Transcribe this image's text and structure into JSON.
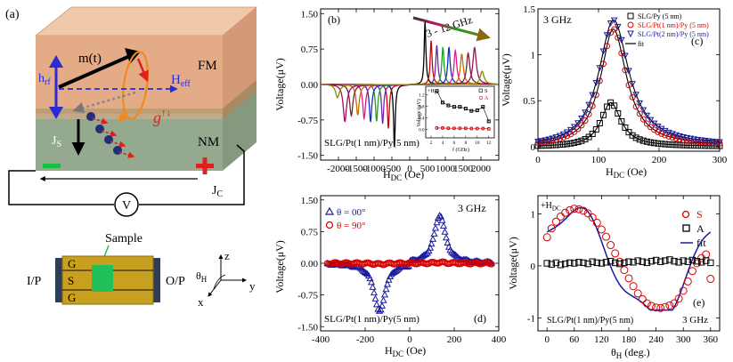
{
  "figure": {
    "panel_labels": {
      "a": "(a)",
      "b": "(b)",
      "c": "(c)",
      "d": "(d)",
      "e": "(e)"
    },
    "schematic": {
      "fm_label": "FM",
      "nm_label": "NM",
      "m_label": "m(t)",
      "hrf_main": "h",
      "hrf_sub": "rf",
      "heff_main": "H",
      "heff_sub": "eff",
      "g_label": "g",
      "g_sup": "↑↓",
      "js_main": "J",
      "js_sub": "S",
      "jc_main": "J",
      "jc_sub": "C",
      "voltmeter": "V",
      "cpw_labels": [
        "G",
        "S",
        "G"
      ],
      "sample_label": "Sample",
      "input_port": "I/P",
      "output_port": "O/P",
      "axes": {
        "z": "z",
        "y": "y",
        "x": "x",
        "theta_main": "θ",
        "theta_sub": "H"
      }
    },
    "colors": {
      "fm": "#e4ab87",
      "nm": "#95a98f",
      "interface": "#b89a72",
      "magnetization": "#000000",
      "hrf": "#2b2bd6",
      "heff": "#2b2bd6",
      "precession": "#f08a1c",
      "spin_current": "#1f2f7a",
      "spin_arrow": "#e02020",
      "cpw_gold": "#c8a020",
      "sample": "#22c05a"
    }
  },
  "chart_data": [
    {
      "id": "b",
      "type": "line",
      "title": "",
      "xlabel_main": "H",
      "xlabel_sub": "DC",
      "xlabel_unit": " (Oe)",
      "ylabel": "Voltage(μV)",
      "xlim": [
        -2500,
        2500
      ],
      "ylim": [
        -1.6,
        1.6
      ],
      "xticks": [
        -2000,
        -1500,
        -1000,
        -500,
        0,
        500,
        1000,
        1500,
        2000
      ],
      "yticks": [
        -1.5,
        -0.75,
        0.0,
        0.75,
        1.5
      ],
      "annotation_range": "3 - 12 GHz",
      "sample": "SLG/Pt(1 nm)/Py(5 nm)",
      "series": [
        {
          "freq_ghz": 3,
          "color": "#000000",
          "h_res": 430,
          "width": 28,
          "s": 1.33,
          "a": 0.05
        },
        {
          "freq_ghz": 4,
          "color": "#d40000",
          "h_res": 600,
          "width": 32,
          "s": 0.93,
          "a": 0.05
        },
        {
          "freq_ghz": 5,
          "color": "#6a2ab0",
          "h_res": 760,
          "width": 35,
          "s": 0.83,
          "a": 0.04
        },
        {
          "freq_ghz": 6,
          "color": "#20a020",
          "h_res": 930,
          "width": 38,
          "s": 0.78,
          "a": 0.04
        },
        {
          "freq_ghz": 7,
          "color": "#1030c8",
          "h_res": 1100,
          "width": 42,
          "s": 0.78,
          "a": 0.04
        },
        {
          "freq_ghz": 8,
          "color": "#e01890",
          "h_res": 1280,
          "width": 46,
          "s": 0.72,
          "a": 0.04
        },
        {
          "freq_ghz": 9,
          "color": "#c07000",
          "h_res": 1460,
          "width": 50,
          "s": 0.64,
          "a": 0.03
        },
        {
          "freq_ghz": 10,
          "color": "#7a2525",
          "h_res": 1640,
          "width": 54,
          "s": 0.66,
          "a": 0.03
        },
        {
          "freq_ghz": 11,
          "color": "#a01060",
          "h_res": 1820,
          "width": 58,
          "s": 0.78,
          "a": 0.03
        },
        {
          "freq_ghz": 12,
          "color": "#8a8a00",
          "h_res": 2030,
          "width": 64,
          "s": 0.28,
          "a": 0.02
        }
      ],
      "inset": {
        "label": "+H",
        "label_sub": "DC",
        "ylabel": "Voltage (μV)",
        "xlabel": "f (GHz)",
        "xlim": [
          2,
          12.5
        ],
        "ylim": [
          -0.2,
          1.4
        ],
        "xticks": [
          2,
          4,
          6,
          8,
          10,
          12
        ],
        "yticks": [
          0.0,
          0.4,
          0.8,
          1.2
        ],
        "legend": [
          "S",
          "A"
        ],
        "series": [
          {
            "name": "S",
            "color": "#000000",
            "x": [
              3,
              4,
              5,
              6,
              7,
              8,
              9,
              10,
              11,
              12
            ],
            "y": [
              1.33,
              0.93,
              0.83,
              0.78,
              0.78,
              0.72,
              0.64,
              0.66,
              0.78,
              0.28
            ]
          },
          {
            "name": "A",
            "color": "#d40000",
            "x": [
              3,
              4,
              5,
              6,
              7,
              8,
              9,
              10,
              11,
              12
            ],
            "y": [
              0.05,
              0.05,
              0.04,
              0.04,
              0.04,
              0.04,
              0.03,
              0.03,
              0.03,
              0.02
            ]
          }
        ]
      }
    },
    {
      "id": "c",
      "type": "scatter",
      "title": "3 GHz",
      "xlabel_main": "H",
      "xlabel_sub": "DC",
      "xlabel_unit": " (Oe)",
      "ylabel": "Voltage(μV)",
      "xlim": [
        0,
        300
      ],
      "ylim": [
        -0.05,
        1.5
      ],
      "xticks": [
        0,
        100,
        200,
        300
      ],
      "yticks": [
        0.0,
        0.5,
        1.0,
        1.5
      ],
      "legend": [
        {
          "name": "SLG/Py (5 nm)",
          "color": "#000000",
          "marker": "square"
        },
        {
          "name": "SLG/Pt(1 nm)/Py (5 nm)",
          "color": "#d40000",
          "marker": "circle"
        },
        {
          "name": "SLG/Pt(2 nm)/Py (5 nm)",
          "color": "#1a1aa0",
          "marker": "triangle-down"
        },
        {
          "name": "fit",
          "color": "#000000",
          "marker": "line"
        }
      ],
      "series": [
        {
          "name": "SLG/Py (5 nm)",
          "color": "#000000",
          "marker": "square",
          "h_res": 120,
          "width": 20,
          "s": 0.48,
          "a": 0.02
        },
        {
          "name": "SLG/Pt(1 nm)/Py (5 nm)",
          "color": "#d40000",
          "marker": "circle",
          "h_res": 124,
          "width": 26,
          "s": 1.28,
          "a": 0.06
        },
        {
          "name": "SLG/Pt(2 nm)/Py (5 nm)",
          "color": "#1a1aa0",
          "marker": "triangle-down",
          "h_res": 124,
          "width": 30,
          "s": 1.38,
          "a": 0.08
        }
      ]
    },
    {
      "id": "d",
      "type": "scatter",
      "title": "3 GHz",
      "xlabel_main": "H",
      "xlabel_sub": "DC",
      "xlabel_unit": " (Oe)",
      "ylabel": "Voltage(μV)",
      "xlim": [
        -400,
        400
      ],
      "ylim": [
        -1.6,
        1.6
      ],
      "xticks": [
        -400,
        -200,
        0,
        200,
        400
      ],
      "yticks": [
        -1.5,
        -0.75,
        0.0,
        0.75,
        1.5
      ],
      "sample": "SLG/Pt(1 nm)/Py(5 nm)",
      "legend": [
        {
          "name": "θ = 00°",
          "color": "#1a1aa0",
          "marker": "triangle"
        },
        {
          "name": "θ = 90°",
          "color": "#d40000",
          "marker": "circle"
        }
      ],
      "series": [
        {
          "name": "θ = 00°",
          "color": "#1a1aa0",
          "marker": "triangle",
          "h_res": 135,
          "width": 30,
          "s": 1.15,
          "odd": true
        },
        {
          "name": "θ = 90°",
          "color": "#d40000",
          "marker": "circle",
          "h_res": 135,
          "width": 30,
          "s": 0.02,
          "odd": true
        }
      ]
    },
    {
      "id": "e",
      "type": "scatter",
      "title": "3 GHz",
      "corner_label": "+H",
      "corner_label_sub": "DC",
      "xlabel_main": "θ",
      "xlabel_sub": "H",
      "xlabel_unit": " (deg.)",
      "ylabel": "Voltage(μV)",
      "xlim": [
        -20,
        380
      ],
      "ylim": [
        -1.25,
        1.35
      ],
      "xticks": [
        0,
        60,
        120,
        180,
        240,
        300,
        360
      ],
      "yticks": [
        -1,
        0,
        1
      ],
      "sample": "SLG/Pt(1 nm)/Py(5 nm)",
      "legend": [
        {
          "name": "S",
          "color": "#d40000",
          "marker": "circle"
        },
        {
          "name": "A",
          "color": "#000000",
          "marker": "square"
        },
        {
          "name": "fit",
          "color": "#1a1aa0",
          "marker": "line"
        }
      ],
      "series": [
        {
          "name": "S",
          "color": "#d40000",
          "marker": "circle",
          "x": [
            0,
            10,
            20,
            30,
            40,
            50,
            60,
            70,
            80,
            90,
            100,
            110,
            120,
            130,
            140,
            150,
            160,
            170,
            180,
            190,
            200,
            210,
            220,
            230,
            240,
            250,
            260,
            270,
            280,
            290,
            300,
            310,
            320,
            330,
            340,
            350,
            360
          ],
          "y": [
            0.55,
            0.72,
            0.85,
            0.95,
            1.02,
            1.07,
            1.1,
            1.09,
            1.06,
            1.01,
            0.93,
            0.83,
            0.7,
            0.56,
            0.4,
            0.24,
            0.08,
            -0.08,
            -0.24,
            -0.39,
            -0.53,
            -0.64,
            -0.72,
            -0.77,
            -0.8,
            -0.81,
            -0.79,
            -0.76,
            -0.72,
            -0.63,
            -0.48,
            -0.3,
            -0.1,
            0.05,
            0.15,
            0.22,
            -0.25
          ]
        },
        {
          "name": "A",
          "color": "#000000",
          "marker": "square",
          "x": [
            0,
            10,
            20,
            30,
            40,
            50,
            60,
            70,
            80,
            90,
            100,
            110,
            120,
            130,
            140,
            150,
            160,
            170,
            180,
            190,
            200,
            210,
            220,
            230,
            240,
            250,
            260,
            270,
            280,
            290,
            300,
            310,
            320,
            330,
            340,
            350,
            360
          ],
          "y": [
            0.05,
            0.03,
            0.06,
            0.02,
            0.04,
            0.06,
            0.05,
            0.07,
            0.06,
            0.04,
            0.08,
            0.06,
            0.05,
            0.07,
            0.09,
            0.06,
            0.04,
            0.06,
            0.08,
            0.07,
            0.1,
            0.08,
            0.06,
            0.09,
            0.11,
            0.08,
            0.1,
            0.12,
            0.09,
            0.07,
            0.1,
            0.08,
            0.11,
            0.09,
            0.07,
            0.1,
            0.06
          ]
        },
        {
          "name": "fit",
          "color": "#1a1aa0",
          "marker": "line",
          "model": "sin3",
          "amp": 1.08,
          "phase_deg": 0
        }
      ]
    }
  ]
}
